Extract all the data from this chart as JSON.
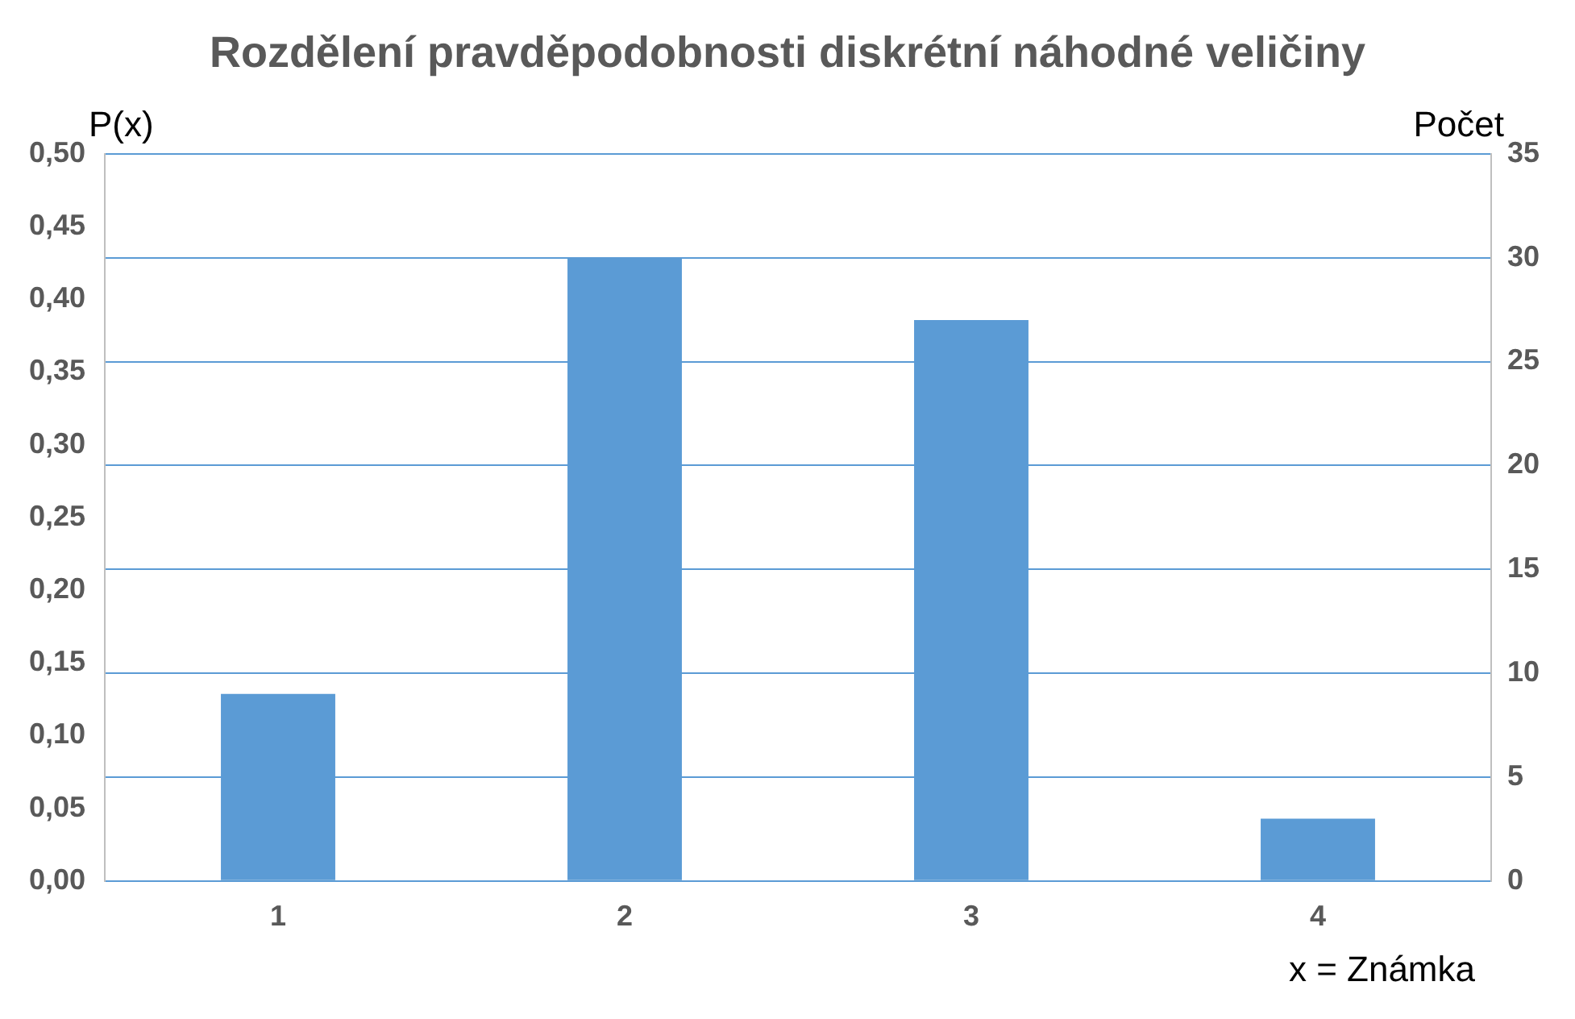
{
  "chart_data": {
    "type": "bar",
    "title": "Rozdělení pravděpodobnosti diskrétní náhodné veličiny",
    "ylabel": "P(x)",
    "y2label": "Počet",
    "xlabel": "x = Známka",
    "categories": [
      "1",
      "2",
      "3",
      "4"
    ],
    "series": [
      {
        "color": "#5b9bd5",
        "values": [
          9,
          30,
          27,
          3
        ],
        "axis": "y2"
      }
    ],
    "ylim": [
      0,
      0.5
    ],
    "yticks": [
      {
        "value": 0,
        "label": "0,00"
      },
      {
        "value": 0.05,
        "label": "0,05"
      },
      {
        "value": 0.1,
        "label": "0,10"
      },
      {
        "value": 0.15,
        "label": "0,15"
      },
      {
        "value": 0.2,
        "label": "0,20"
      },
      {
        "value": 0.25,
        "label": "0,25"
      },
      {
        "value": 0.3,
        "label": "0,30"
      },
      {
        "value": 0.35,
        "label": "0,35"
      },
      {
        "value": 0.4,
        "label": "0,40"
      },
      {
        "value": 0.45,
        "label": "0,45"
      },
      {
        "value": 0.5,
        "label": "0,50"
      }
    ],
    "y2lim": [
      0,
      35
    ],
    "y2ticks": [
      0,
      5,
      10,
      15,
      20,
      25,
      30,
      35
    ],
    "grid": true,
    "legend": false
  }
}
